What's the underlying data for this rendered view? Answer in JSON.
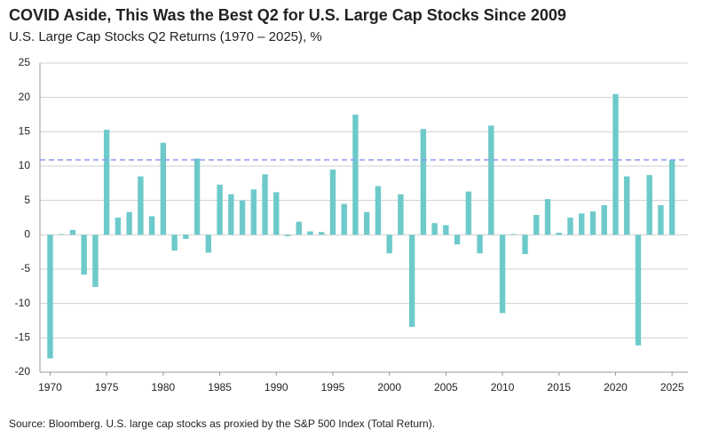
{
  "chart_data": {
    "type": "bar",
    "title": "COVID Aside, This Was the Best Q2 for U.S. Large Cap Stocks Since 2009",
    "subtitle": "U.S. Large Cap Stocks Q2 Returns (1970 – 2025), %",
    "source": "Source: Bloomberg. U.S. large cap stocks as proxied by the S&P 500 Index (Total Return).",
    "x": [
      1970,
      1971,
      1972,
      1973,
      1974,
      1975,
      1976,
      1977,
      1978,
      1979,
      1980,
      1981,
      1982,
      1983,
      1984,
      1985,
      1986,
      1987,
      1988,
      1989,
      1990,
      1991,
      1992,
      1993,
      1994,
      1995,
      1996,
      1997,
      1998,
      1999,
      2000,
      2001,
      2002,
      2003,
      2004,
      2005,
      2006,
      2007,
      2008,
      2009,
      2010,
      2011,
      2012,
      2013,
      2014,
      2015,
      2016,
      2017,
      2018,
      2019,
      2020,
      2021,
      2022,
      2023,
      2024,
      2025
    ],
    "values": [
      -18,
      0.1,
      0.7,
      -5.8,
      -7.6,
      15.3,
      2.5,
      3.3,
      8.5,
      2.7,
      13.4,
      -2.3,
      -0.6,
      11.1,
      -2.6,
      7.3,
      5.9,
      5.0,
      6.6,
      8.8,
      6.2,
      -0.2,
      1.9,
      0.5,
      0.4,
      9.5,
      4.5,
      17.5,
      3.3,
      7.1,
      -2.7,
      5.9,
      -13.4,
      15.4,
      1.7,
      1.4,
      -1.4,
      6.3,
      -2.7,
      15.9,
      -11.4,
      0.1,
      -2.8,
      2.9,
      5.2,
      0.3,
      2.5,
      3.1,
      3.4,
      4.3,
      20.5,
      8.5,
      -16.1,
      8.7,
      4.3,
      10.9
    ],
    "color": "#6ecaca",
    "reference_line_color": "#8b9cf2",
    "xlim": [
      1969.1,
      2026.4
    ],
    "xticks": [
      1970,
      1975,
      1980,
      1985,
      1990,
      1995,
      2000,
      2005,
      2010,
      2015,
      2020,
      2025
    ],
    "ylim": [
      -20,
      25
    ],
    "yticks": [
      -20,
      -15,
      -10,
      -5,
      0,
      5,
      10,
      15,
      20,
      25
    ],
    "grid": true
  }
}
